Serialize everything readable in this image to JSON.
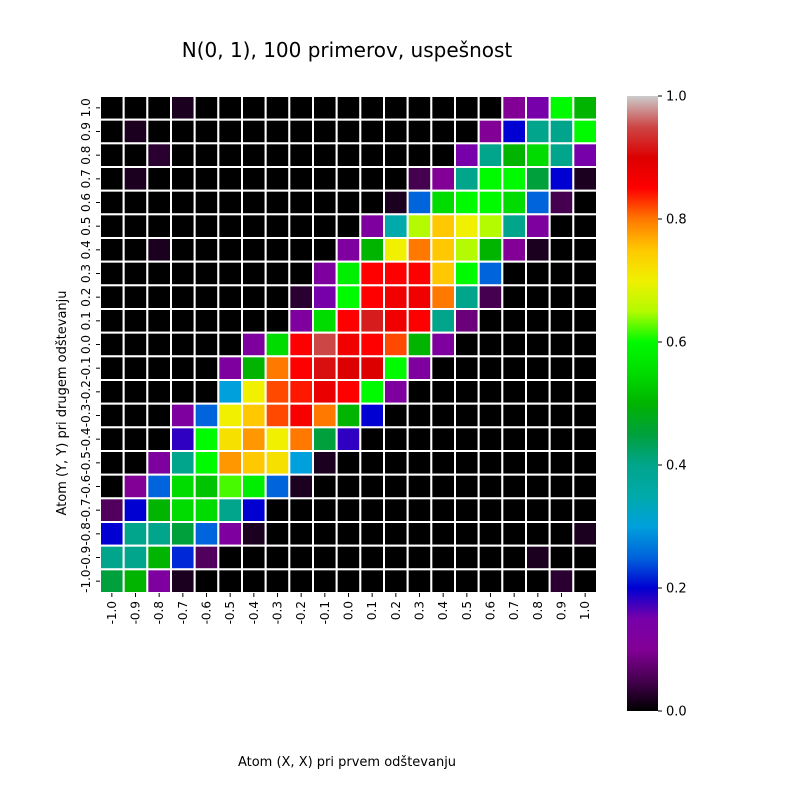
{
  "chart_data": {
    "type": "heatmap",
    "title": "N(0, 1), 100 primerov, uspešnost",
    "xlabel": "Atom (X, X) pri prvem odštevanju",
    "ylabel": "Atom (Y, Y) pri drugem odštevanju",
    "x_ticks": [
      "-1.0",
      "-0.9",
      "-0.8",
      "-0.7",
      "-0.6",
      "-0.5",
      "-0.4",
      "-0.3",
      "-0.2",
      "-0.1",
      "0.0",
      "0.1",
      "0.2",
      "0.3",
      "0.4",
      "0.5",
      "0.6",
      "0.7",
      "0.8",
      "0.9",
      "1.0"
    ],
    "y_ticks": [
      "1.0",
      "0.9",
      "0.8",
      "0.7",
      "0.6",
      "0.5",
      "0.4",
      "0.3",
      "0.2",
      "0.1",
      "0.0",
      "-0.1",
      "-0.2",
      "-0.3",
      "-0.4",
      "-0.5",
      "-0.6",
      "-0.7",
      "-0.8",
      "-0.9",
      "-1.0"
    ],
    "colormap": "nipy_spectral",
    "vmin": 0,
    "vmax": 1,
    "colorbar_ticks": [
      "0.0",
      "0.2",
      "0.4",
      "0.6",
      "0.8",
      "1.0"
    ],
    "values": [
      [
        0,
        0,
        0,
        0.02,
        0,
        0,
        0,
        0,
        0,
        0,
        0,
        0,
        0,
        0,
        0,
        0,
        0,
        0.1,
        0.15,
        0.6,
        0.5
      ],
      [
        0,
        0.02,
        0,
        0,
        0,
        0,
        0,
        0,
        0,
        0,
        0,
        0,
        0,
        0,
        0,
        0,
        0.1,
        0.2,
        0.4,
        0.4,
        0.6
      ],
      [
        0,
        0,
        0.03,
        0,
        0,
        0,
        0,
        0,
        0,
        0,
        0,
        0,
        0,
        0,
        0,
        0.15,
        0.4,
        0.5,
        0.55,
        0.4,
        0.15
      ],
      [
        0,
        0.02,
        0,
        0,
        0,
        0,
        0,
        0,
        0,
        0,
        0,
        0,
        0,
        0.05,
        0.1,
        0.4,
        0.6,
        0.6,
        0.45,
        0.2,
        0.02
      ],
      [
        0,
        0,
        0,
        0,
        0,
        0,
        0,
        0,
        0,
        0,
        0,
        0,
        0.02,
        0.25,
        0.55,
        0.6,
        0.6,
        0.55,
        0.25,
        0.05,
        0
      ],
      [
        0,
        0,
        0,
        0,
        0,
        0,
        0,
        0,
        0,
        0,
        0,
        0.12,
        0.35,
        0.65,
        0.75,
        0.7,
        0.65,
        0.4,
        0.12,
        0,
        0
      ],
      [
        0,
        0,
        0.02,
        0,
        0,
        0,
        0,
        0,
        0,
        0,
        0.12,
        0.5,
        0.7,
        0.8,
        0.75,
        0.65,
        0.5,
        0.1,
        0.02,
        0,
        0
      ],
      [
        0,
        0,
        0,
        0,
        0,
        0,
        0,
        0,
        0,
        0.12,
        0.58,
        0.85,
        0.85,
        0.85,
        0.75,
        0.6,
        0.25,
        0,
        0,
        0,
        0
      ],
      [
        0,
        0,
        0,
        0,
        0,
        0,
        0,
        0,
        0.03,
        0.15,
        0.6,
        0.85,
        0.87,
        0.87,
        0.8,
        0.4,
        0.05,
        0,
        0,
        0,
        0
      ],
      [
        0,
        0,
        0,
        0,
        0,
        0,
        0,
        0,
        0.12,
        0.55,
        0.85,
        0.92,
        0.87,
        0.85,
        0.4,
        0.08,
        0,
        0,
        0,
        0,
        0
      ],
      [
        0,
        0,
        0,
        0,
        0,
        0,
        0.12,
        0.55,
        0.85,
        0.95,
        0.87,
        0.85,
        0.82,
        0.5,
        0.12,
        0,
        0,
        0,
        0,
        0,
        0
      ],
      [
        0,
        0,
        0,
        0,
        0,
        0.12,
        0.5,
        0.8,
        0.85,
        0.91,
        0.9,
        0.9,
        0.6,
        0.12,
        0,
        0,
        0,
        0,
        0,
        0,
        0
      ],
      [
        0,
        0,
        0,
        0,
        0,
        0.3,
        0.7,
        0.82,
        0.84,
        0.88,
        0.85,
        0.6,
        0.12,
        0,
        0,
        0,
        0,
        0,
        0,
        0,
        0
      ],
      [
        0,
        0,
        0,
        0.12,
        0.25,
        0.7,
        0.75,
        0.82,
        0.86,
        0.8,
        0.5,
        0.2,
        0,
        0,
        0,
        0,
        0,
        0,
        0,
        0,
        0
      ],
      [
        0,
        0,
        0,
        0.18,
        0.6,
        0.72,
        0.78,
        0.7,
        0.8,
        0.45,
        0.18,
        0,
        0,
        0,
        0,
        0,
        0,
        0,
        0,
        0,
        0
      ],
      [
        0,
        0,
        0.12,
        0.4,
        0.6,
        0.78,
        0.75,
        0.72,
        0.3,
        0.02,
        0,
        0,
        0,
        0,
        0,
        0,
        0,
        0,
        0,
        0,
        0
      ],
      [
        0,
        0.1,
        0.25,
        0.55,
        0.52,
        0.62,
        0.58,
        0.25,
        0.02,
        0,
        0,
        0,
        0,
        0,
        0,
        0,
        0,
        0,
        0,
        0,
        0
      ],
      [
        0.06,
        0.2,
        0.5,
        0.55,
        0.55,
        0.4,
        0.2,
        0,
        0,
        0,
        0,
        0,
        0,
        0,
        0,
        0,
        0,
        0,
        0,
        0,
        0
      ],
      [
        0.2,
        0.4,
        0.4,
        0.45,
        0.25,
        0.12,
        0.02,
        0,
        0,
        0,
        0,
        0,
        0,
        0,
        0,
        0,
        0,
        0,
        0,
        0,
        0.02
      ],
      [
        0.4,
        0.4,
        0.5,
        0.22,
        0.06,
        0,
        0,
        0,
        0,
        0,
        0,
        0,
        0,
        0,
        0,
        0,
        0,
        0,
        0.02,
        0,
        0
      ],
      [
        0.45,
        0.5,
        0.12,
        0.02,
        0,
        0,
        0,
        0,
        0,
        0,
        0,
        0,
        0,
        0,
        0,
        0,
        0,
        0,
        0,
        0.03,
        0
      ]
    ]
  }
}
